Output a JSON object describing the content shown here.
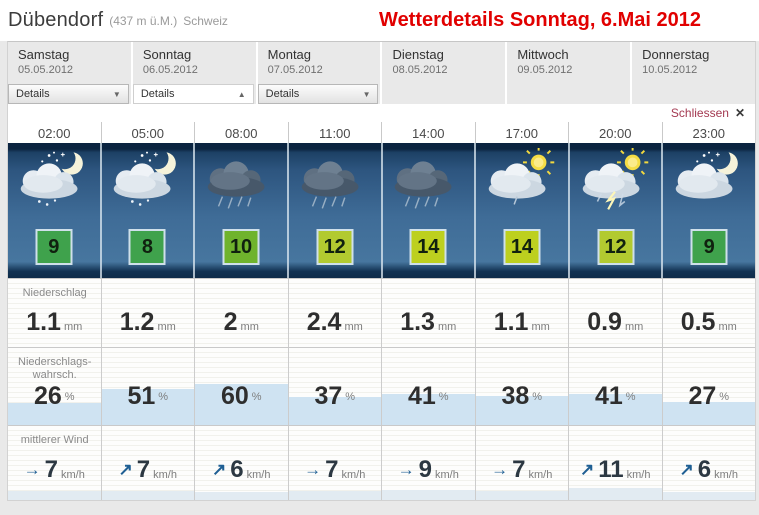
{
  "header": {
    "location": "Dübendorf",
    "elevation": "(437 m ü.M.)",
    "country": "Schweiz",
    "title": "Wetterdetails Sonntag, 6.Mai 2012"
  },
  "days": [
    {
      "name": "Samstag",
      "date": "05.05.2012",
      "details_label": "Details",
      "details_state": "collapsed"
    },
    {
      "name": "Sonntag",
      "date": "06.05.2012",
      "details_label": "Details",
      "details_state": "expanded"
    },
    {
      "name": "Montag",
      "date": "07.05.2012",
      "details_label": "Details",
      "details_state": "collapsed"
    },
    {
      "name": "Dienstag",
      "date": "08.05.2012"
    },
    {
      "name": "Mittwoch",
      "date": "09.05.2012"
    },
    {
      "name": "Donnerstag",
      "date": "10.05.2012"
    }
  ],
  "close": {
    "label": "Schliessen",
    "icon": "✕"
  },
  "row_labels": {
    "precip": "Niederschlag",
    "prob_line1": "Niederschlags-",
    "prob_line2": "wahrsch.",
    "wind": "mittlerer Wind"
  },
  "units": {
    "precip": "mm",
    "prob": "%",
    "wind": "km/h"
  },
  "colors": {
    "title_red": "#e10000",
    "close_link": "#a43a52",
    "temp_green": "#3fa24c",
    "temp_yellow_green": "#6fb32d",
    "temp_lime": "#b2ca30",
    "temp_lime_bright": "#bdd01f",
    "prob_bar": "#cfe3f2",
    "wind_arrow": "#1f5f93"
  },
  "columns": [
    {
      "time": "02:00",
      "icon": "cloud-moon-snow",
      "temp": 9,
      "temp_color": "#3fa24c",
      "precip": "1.1",
      "prob": 26,
      "wind": 7,
      "wind_arrow": "→"
    },
    {
      "time": "05:00",
      "icon": "cloud-moon-snow",
      "temp": 8,
      "temp_color": "#3fa24c",
      "precip": "1.2",
      "prob": 51,
      "wind": 7,
      "wind_arrow": "↗"
    },
    {
      "time": "08:00",
      "icon": "rain-cloud",
      "temp": 10,
      "temp_color": "#6fb32d",
      "precip": "2",
      "prob": 60,
      "wind": 6,
      "wind_arrow": "↗"
    },
    {
      "time": "11:00",
      "icon": "rain-cloud",
      "temp": 12,
      "temp_color": "#b2ca30",
      "precip": "2.4",
      "prob": 37,
      "wind": 7,
      "wind_arrow": "→"
    },
    {
      "time": "14:00",
      "icon": "rain-cloud",
      "temp": 14,
      "temp_color": "#bdd01f",
      "precip": "1.3",
      "prob": 41,
      "wind": 9,
      "wind_arrow": "→"
    },
    {
      "time": "17:00",
      "icon": "sun-cloud",
      "temp": 14,
      "temp_color": "#bdd01f",
      "precip": "1.1",
      "prob": 38,
      "wind": 7,
      "wind_arrow": "→"
    },
    {
      "time": "20:00",
      "icon": "thunder-cloud",
      "temp": 12,
      "temp_color": "#b2ca30",
      "precip": "0.9",
      "prob": 41,
      "wind": 11,
      "wind_arrow": "↗"
    },
    {
      "time": "23:00",
      "icon": "cloud-moon",
      "temp": 9,
      "temp_color": "#3fa24c",
      "precip": "0.5",
      "prob": 27,
      "wind": 6,
      "wind_arrow": "↗"
    }
  ]
}
